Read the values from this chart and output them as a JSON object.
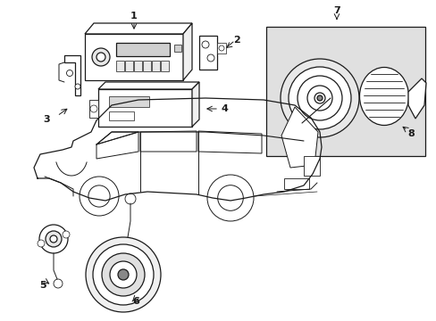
{
  "background_color": "#ffffff",
  "line_color": "#1a1a1a",
  "gray_fill": "#e0e0e0",
  "fig_width": 4.89,
  "fig_height": 3.6,
  "dpi": 100
}
